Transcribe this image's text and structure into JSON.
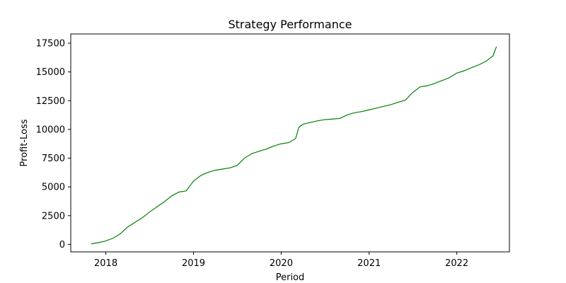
{
  "chart_data": {
    "type": "line",
    "title": "Strategy Performance",
    "xlabel": "Period",
    "ylabel": "Profit-Loss",
    "xlim": [
      "2017-08-08",
      "2022-08-08"
    ],
    "ylim": [
      -650,
      18300
    ],
    "x_ticks": [
      "2018",
      "2019",
      "2020",
      "2021",
      "2022"
    ],
    "y_ticks": [
      0,
      2500,
      5000,
      7500,
      10000,
      12500,
      15000,
      17500
    ],
    "grid": false,
    "series": [
      {
        "color": "#008000",
        "x": [
          "2017-11-01",
          "2017-12-01",
          "2018-01-01",
          "2018-02-01",
          "2018-03-01",
          "2018-04-01",
          "2018-05-01",
          "2018-06-01",
          "2018-07-01",
          "2018-08-01",
          "2018-09-01",
          "2018-10-01",
          "2018-11-01",
          "2018-12-01",
          "2019-01-01",
          "2019-02-01",
          "2019-03-01",
          "2019-04-01",
          "2019-05-01",
          "2019-06-01",
          "2019-07-01",
          "2019-08-01",
          "2019-09-01",
          "2019-10-01",
          "2019-11-01",
          "2019-12-01",
          "2020-01-01",
          "2020-02-01",
          "2020-03-01",
          "2020-03-15",
          "2020-04-01",
          "2020-05-01",
          "2020-06-01",
          "2020-07-01",
          "2020-08-01",
          "2020-09-01",
          "2020-10-01",
          "2020-11-01",
          "2020-12-01",
          "2021-01-01",
          "2021-02-01",
          "2021-03-01",
          "2021-04-01",
          "2021-05-01",
          "2021-06-01",
          "2021-07-01",
          "2021-08-01",
          "2021-09-01",
          "2021-10-01",
          "2021-11-01",
          "2021-12-01",
          "2022-01-01",
          "2022-02-01",
          "2022-03-01",
          "2022-04-01",
          "2022-05-01",
          "2022-06-01",
          "2022-06-15"
        ],
        "y": [
          50,
          150,
          300,
          550,
          900,
          1500,
          1900,
          2300,
          2800,
          3250,
          3700,
          4200,
          4550,
          4650,
          5500,
          6000,
          6250,
          6450,
          6550,
          6650,
          6850,
          7500,
          7900,
          8100,
          8300,
          8550,
          8750,
          8850,
          9200,
          10200,
          10450,
          10600,
          10750,
          10850,
          10900,
          10950,
          11250,
          11450,
          11550,
          11700,
          11850,
          12000,
          12150,
          12350,
          12550,
          13200,
          13700,
          13800,
          14000,
          14250,
          14500,
          14900,
          15100,
          15350,
          15600,
          15900,
          16400,
          17200
        ]
      }
    ]
  }
}
